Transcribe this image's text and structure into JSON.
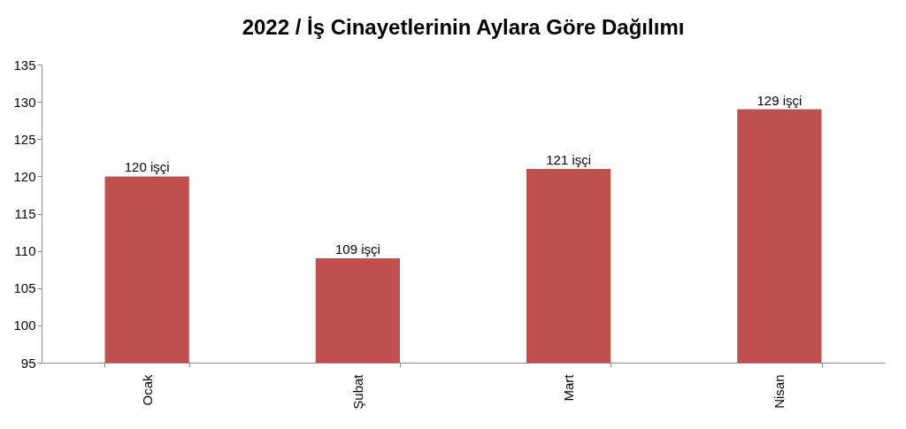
{
  "chart_data": {
    "type": "bar",
    "title": "2022 / İş Cinayetlerinin Aylara Göre Dağılımı",
    "categories": [
      "Ocak",
      "Şubat",
      "Mart",
      "Nisan"
    ],
    "values": [
      120,
      109,
      121,
      129
    ],
    "value_labels": [
      "120 işçi",
      "109 işçi",
      "121 işçi",
      "129 işçi"
    ],
    "color": "#c0504d",
    "ylim": [
      95,
      135
    ],
    "yticks": [
      95,
      100,
      105,
      110,
      115,
      120,
      125,
      130,
      135
    ],
    "grid": false
  }
}
